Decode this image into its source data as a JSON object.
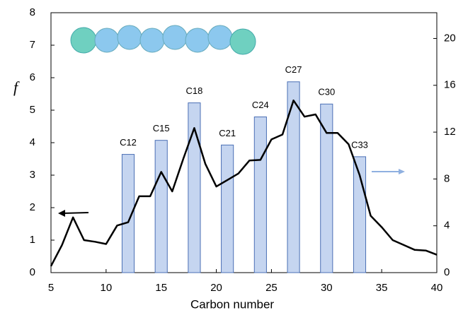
{
  "chart_data": {
    "type": "combo",
    "xlabel": "Carbon number",
    "ylabel": "f",
    "xlim": [
      5,
      40
    ],
    "xticks": [
      5,
      10,
      15,
      20,
      25,
      30,
      35,
      40
    ],
    "ylim": [
      0,
      8
    ],
    "yticks": [
      0,
      1,
      2,
      3,
      4,
      5,
      6,
      7,
      8
    ],
    "y2lim": [
      0,
      22.2
    ],
    "y2ticks": [
      0,
      4,
      8,
      12,
      16,
      20
    ],
    "series": [
      {
        "type": "bar",
        "axis": "y2",
        "color": "#c5d5f0",
        "x": [
          12,
          15,
          18,
          21,
          24,
          27,
          30,
          33
        ],
        "labels": [
          "C12",
          "C15",
          "C18",
          "C21",
          "C24",
          "C27",
          "C30",
          "C33"
        ],
        "values": [
          10.1,
          11.3,
          14.5,
          10.9,
          13.3,
          16.3,
          14.4,
          9.9
        ]
      },
      {
        "type": "line",
        "color": "#000000",
        "x": [
          5,
          6,
          7,
          8,
          9,
          10,
          11,
          12,
          13,
          14,
          15,
          16,
          17,
          18,
          19,
          20,
          21,
          22,
          23,
          24,
          25,
          26,
          27,
          28,
          29,
          30,
          31,
          32,
          33,
          34,
          35,
          36,
          37,
          38,
          39,
          40
        ],
        "values": [
          0.2,
          0.85,
          1.7,
          1.0,
          0.95,
          0.88,
          1.45,
          1.55,
          2.35,
          2.35,
          3.1,
          2.5,
          3.5,
          4.45,
          3.35,
          2.65,
          2.85,
          3.05,
          3.45,
          3.47,
          4.1,
          4.25,
          5.3,
          4.8,
          4.87,
          4.3,
          4.3,
          3.95,
          3.0,
          1.75,
          1.4,
          1.0,
          0.85,
          0.7,
          0.68,
          0.55
        ]
      }
    ]
  }
}
